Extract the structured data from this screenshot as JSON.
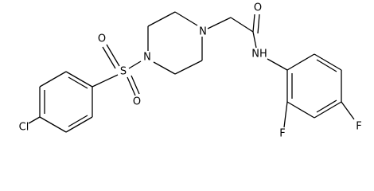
{
  "atoms": [
    {
      "label": "Cl"
    },
    {
      "label": "S"
    },
    {
      "label": "O"
    },
    {
      "label": "O"
    },
    {
      "label": "N"
    },
    {
      "label": "N"
    },
    {
      "label": "O"
    },
    {
      "label": "NH"
    },
    {
      "label": "F"
    },
    {
      "label": "F"
    }
  ]
}
